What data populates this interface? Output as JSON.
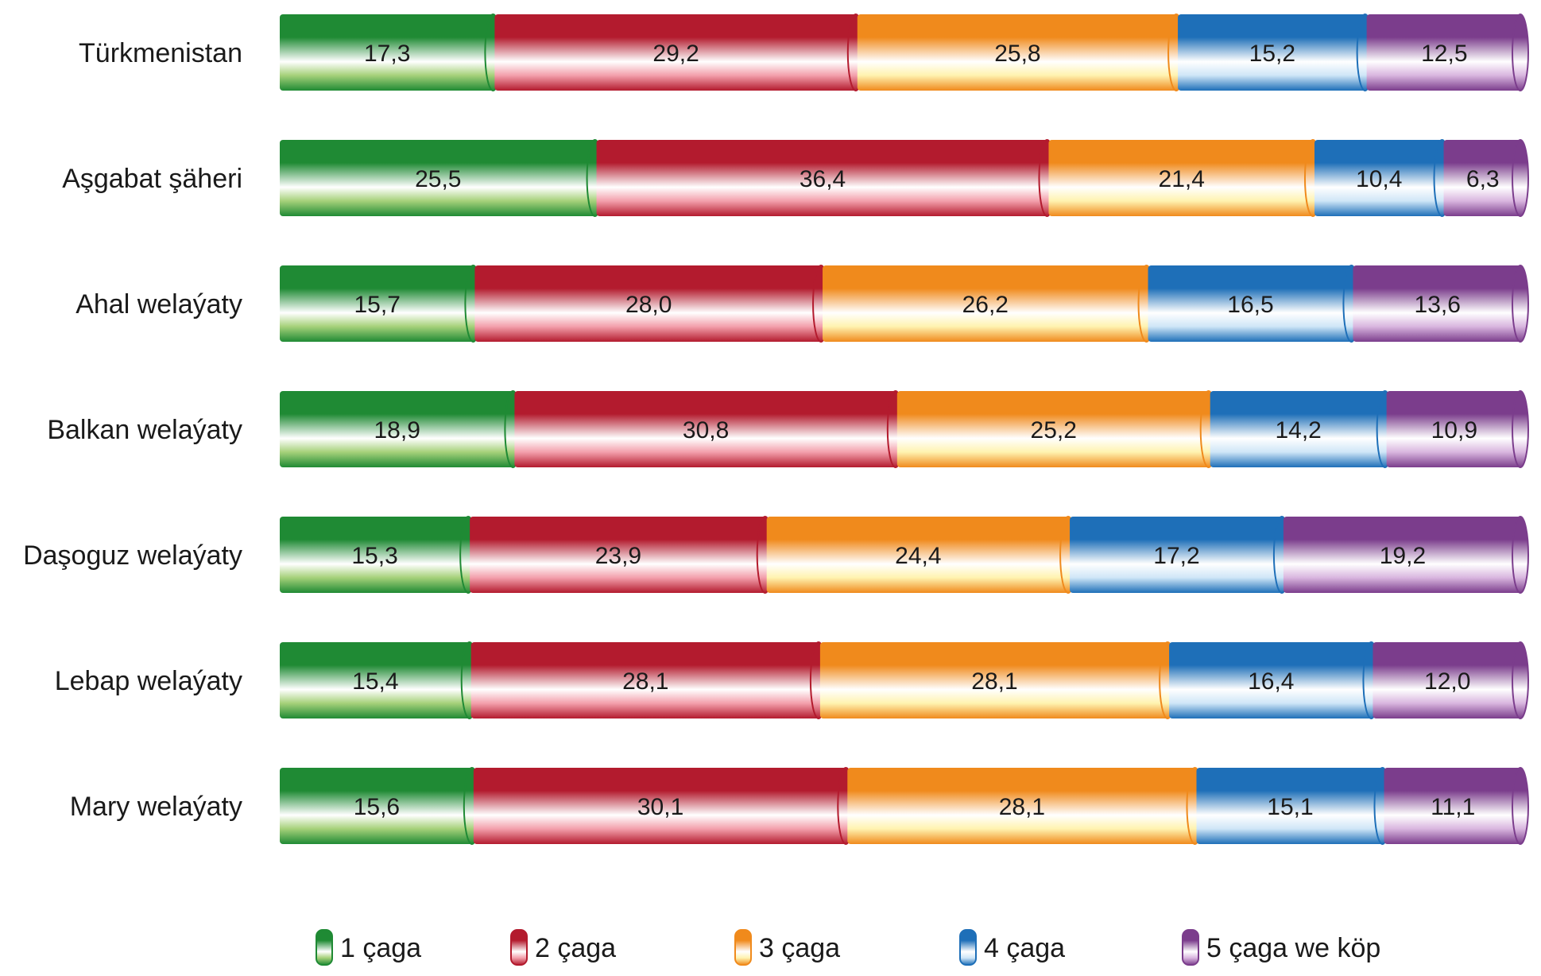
{
  "chart_data": {
    "type": "bar",
    "orientation": "horizontal",
    "stacked": true,
    "title": "",
    "xlabel": "",
    "ylabel": "",
    "xlim": [
      0,
      100
    ],
    "grid": false,
    "legend_position": "bottom",
    "categories": [
      "Türkmenistan",
      "Aşgabat şäheri",
      "Ahal welaýaty",
      "Balkan welaýaty",
      "Daşoguz welaýaty",
      "Lebap welaýaty",
      "Mary welaýaty"
    ],
    "value_labels": [
      [
        "17,3",
        "29,2",
        "25,8",
        "15,2",
        "12,5"
      ],
      [
        "25,5",
        "36,4",
        "21,4",
        "10,4",
        "6,3"
      ],
      [
        "15,7",
        "28,0",
        "26,2",
        "16,5",
        "13,6"
      ],
      [
        "18,9",
        "30,8",
        "25,2",
        "14,2",
        "10,9"
      ],
      [
        "15,3",
        "23,9",
        "24,4",
        "17,2",
        "19,2"
      ],
      [
        "15,4",
        "28,1",
        "28,1",
        "16,4",
        "12,0"
      ],
      [
        "15,6",
        "30,1",
        "28,1",
        "15,1",
        "11,1"
      ]
    ],
    "series": [
      {
        "name": "1 çaga",
        "color": "#1f8a34",
        "light": "#a6d17a",
        "values": [
          17.3,
          25.5,
          15.7,
          18.9,
          15.3,
          15.4,
          15.6
        ]
      },
      {
        "name": "2 çaga",
        "color": "#b31b2e",
        "light": "#f3a0ac",
        "values": [
          29.2,
          36.4,
          28.0,
          30.8,
          23.9,
          28.1,
          30.1
        ]
      },
      {
        "name": "3 çaga",
        "color": "#f08a1c",
        "light": "#fff3b0",
        "values": [
          25.8,
          21.4,
          26.2,
          25.2,
          24.4,
          28.1,
          28.1
        ]
      },
      {
        "name": "4 çaga",
        "color": "#1e6fb8",
        "light": "#cfe6f7",
        "values": [
          15.2,
          10.4,
          16.5,
          14.2,
          17.2,
          16.4,
          15.1
        ]
      },
      {
        "name": "5 çaga we köp",
        "color": "#7b3d8c",
        "light": "#d9b6df",
        "values": [
          12.5,
          6.3,
          13.6,
          10.9,
          19.2,
          12.0,
          11.1
        ]
      }
    ]
  }
}
